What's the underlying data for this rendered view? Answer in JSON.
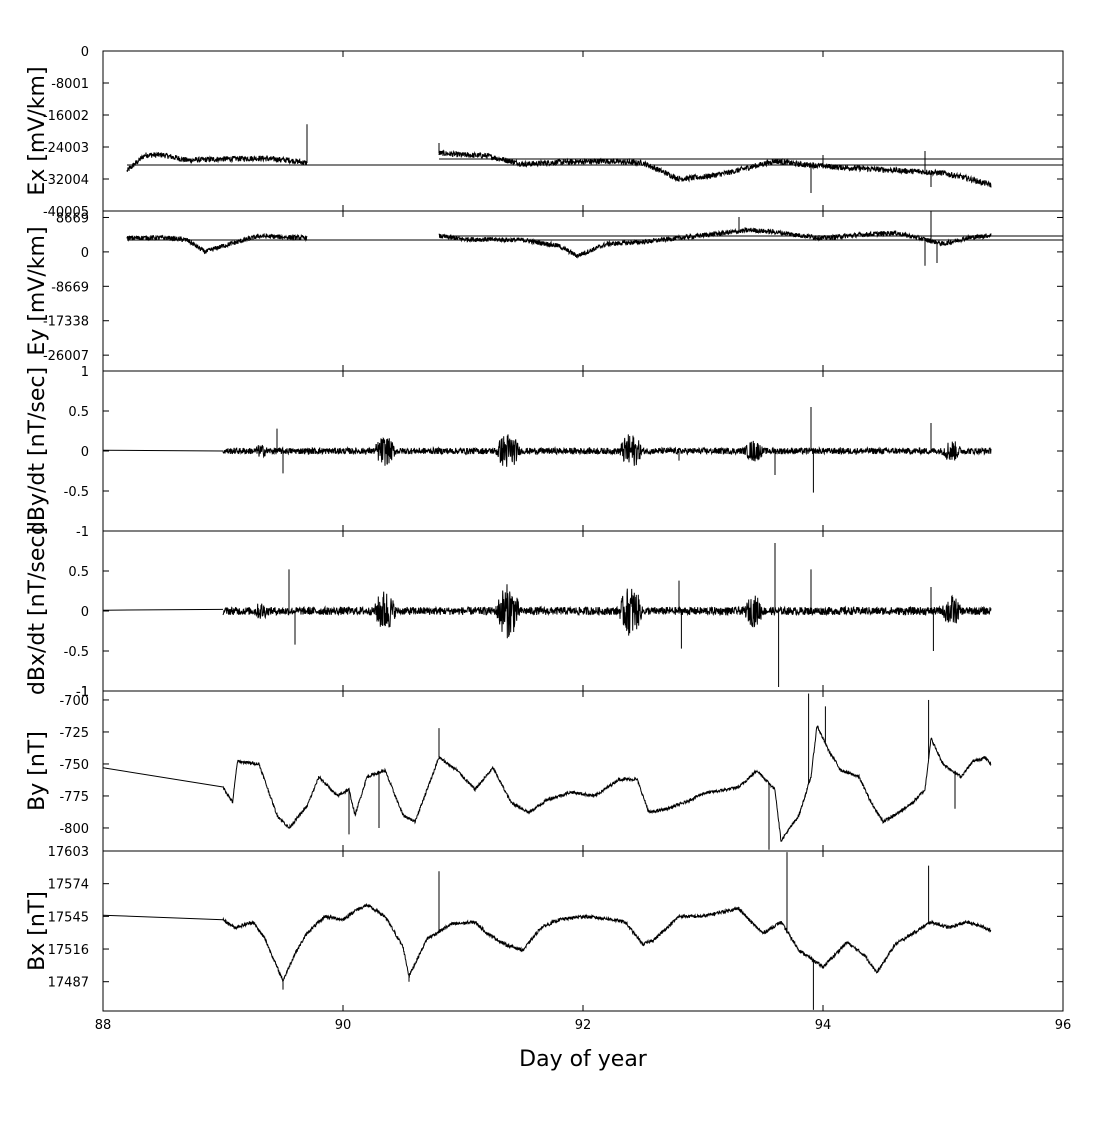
{
  "chart_data": {
    "type": "line",
    "xlabel": "Day of year",
    "xlim": [
      88,
      96
    ],
    "xticks": [
      88,
      90,
      92,
      94,
      96
    ],
    "xtick_labels": [
      "88",
      "90",
      "92",
      "94",
      "96"
    ],
    "grid": false,
    "panels": [
      {
        "id": "ex",
        "ylabel": "Ex [mV/km]",
        "ylim": [
          -40005,
          0
        ],
        "yticks": [
          0,
          -8001,
          -16002,
          -24003,
          -32004,
          -40005
        ],
        "ytick_labels": [
          "0",
          "-8001",
          "-16002",
          "-24003",
          "-32004",
          "-40005"
        ],
        "noise": 700,
        "segments": [
          [
            [
              88.2,
              -30000
            ],
            [
              88.35,
              -26000
            ],
            [
              88.5,
              -26000
            ],
            [
              88.7,
              -27300
            ],
            [
              89.0,
              -27000
            ],
            [
              89.3,
              -26800
            ],
            [
              89.55,
              -27300
            ],
            [
              89.7,
              -28000
            ]
          ],
          [
            [
              90.8,
              -25500
            ],
            [
              91.0,
              -26000
            ],
            [
              91.2,
              -26200
            ],
            [
              91.5,
              -28300
            ],
            [
              91.8,
              -27800
            ],
            [
              92.2,
              -27500
            ],
            [
              92.5,
              -28000
            ],
            [
              92.8,
              -32000
            ],
            [
              93.0,
              -31500
            ],
            [
              93.2,
              -30500
            ],
            [
              93.4,
              -29000
            ],
            [
              93.6,
              -27500
            ],
            [
              93.8,
              -28300
            ],
            [
              94.1,
              -29000
            ],
            [
              94.4,
              -29500
            ],
            [
              94.7,
              -30000
            ],
            [
              95.0,
              -30500
            ],
            [
              95.2,
              -31800
            ],
            [
              95.4,
              -33500
            ]
          ]
        ],
        "baselines": [
          {
            "x": [
              88.2,
              96
            ],
            "y": [
              -28500,
              -28500
            ]
          },
          {
            "x": [
              90.8,
              96
            ],
            "y": [
              -27000,
              -27000
            ]
          }
        ],
        "spikes": [
          [
            89.7,
            -18300
          ],
          [
            90.8,
            -23000
          ],
          [
            93.9,
            -35500
          ],
          [
            94.0,
            -26000
          ],
          [
            94.85,
            -25000
          ],
          [
            94.9,
            -34000
          ]
        ]
      },
      {
        "id": "ey",
        "ylabel": "Ey [mV/km]",
        "ylim": [
          -30000,
          10300
        ],
        "yticks": [
          8669,
          0,
          -8669,
          -17338,
          -26007
        ],
        "ytick_labels": [
          "8669",
          "0",
          "-8669",
          "-17338",
          "-26007"
        ],
        "noise": 600,
        "segments": [
          [
            [
              88.2,
              3500
            ],
            [
              88.5,
              3600
            ],
            [
              88.7,
              3000
            ],
            [
              88.85,
              0
            ],
            [
              89.0,
              1500
            ],
            [
              89.3,
              4000
            ],
            [
              89.7,
              3500
            ]
          ],
          [
            [
              90.8,
              4000
            ],
            [
              91.0,
              3200
            ],
            [
              91.5,
              3000
            ],
            [
              91.8,
              1500
            ],
            [
              91.95,
              -1000
            ],
            [
              92.2,
              2000
            ],
            [
              92.5,
              2500
            ],
            [
              92.8,
              3500
            ],
            [
              93.0,
              4200
            ],
            [
              93.4,
              5500
            ],
            [
              93.6,
              5000
            ],
            [
              93.8,
              4200
            ],
            [
              94.0,
              3500
            ],
            [
              94.3,
              4300
            ],
            [
              94.6,
              4800
            ],
            [
              94.8,
              3500
            ],
            [
              95.0,
              2000
            ],
            [
              95.2,
              3500
            ],
            [
              95.4,
              4200
            ]
          ]
        ],
        "baselines": [
          {
            "x": [
              88.2,
              96
            ],
            "y": [
              3000,
              3000
            ]
          },
          {
            "x": [
              90.8,
              96
            ],
            "y": [
              4000,
              4000
            ]
          }
        ],
        "spikes": [
          [
            93.3,
            8800
          ],
          [
            94.9,
            13000
          ],
          [
            94.85,
            -3500
          ],
          [
            94.95,
            -2800
          ]
        ]
      },
      {
        "id": "dbydt",
        "ylabel": "dBy/dt [nT/sec]",
        "ylim": [
          -1,
          1
        ],
        "yticks": [
          1,
          0.5,
          0,
          -0.5,
          -1
        ],
        "ytick_labels": [
          "1",
          "0.5",
          "0",
          "-0.5",
          "-1"
        ],
        "noise": 0.04,
        "burst": 0.2,
        "flat": [
          [
            88.0,
            0.01
          ],
          [
            89.0,
            0.0
          ]
        ],
        "segments": [
          [
            [
              89.0,
              0.0
            ],
            [
              95.4,
              0.0
            ]
          ]
        ],
        "baselines": [],
        "spikes": [
          [
            89.45,
            0.28
          ],
          [
            89.5,
            -0.28
          ],
          [
            93.6,
            -0.3
          ],
          [
            93.9,
            0.55
          ],
          [
            93.92,
            -0.52
          ],
          [
            94.9,
            0.35
          ],
          [
            92.8,
            -0.12
          ]
        ]
      },
      {
        "id": "dbxdt",
        "ylabel": "dBx/dt [nT/sec]",
        "ylim": [
          -1,
          1
        ],
        "yticks": [
          -1,
          0.5,
          0,
          -0.5,
          -1
        ],
        "ytick_labels": [
          "-1",
          "0.5",
          "0",
          "-0.5",
          "-1"
        ],
        "noise": 0.05,
        "burst": 0.3,
        "flat": [
          [
            88.0,
            0.01
          ],
          [
            89.0,
            0.02
          ]
        ],
        "segments": [
          [
            [
              89.0,
              0.0
            ],
            [
              95.4,
              0.0
            ]
          ]
        ],
        "baselines": [],
        "spikes": [
          [
            89.55,
            0.52
          ],
          [
            89.6,
            -0.42
          ],
          [
            92.8,
            0.38
          ],
          [
            92.82,
            -0.47
          ],
          [
            93.6,
            0.85
          ],
          [
            93.63,
            -0.95
          ],
          [
            93.9,
            0.52
          ],
          [
            94.9,
            0.3
          ],
          [
            94.92,
            -0.5
          ]
        ]
      },
      {
        "id": "by",
        "ylabel": "By [nT]",
        "ylim": [
          -818,
          -693
        ],
        "yticks": [
          -700,
          -725,
          -750,
          -775,
          -800
        ],
        "ytick_labels": [
          "-700",
          "-725",
          "-750",
          "-775",
          "-800"
        ],
        "noise": 1.2,
        "flat": [
          [
            88.0,
            -753
          ],
          [
            89.0,
            -768
          ]
        ],
        "segments": [
          [
            [
              89.0,
              -768
            ],
            [
              89.08,
              -780
            ],
            [
              89.12,
              -748
            ],
            [
              89.3,
              -750
            ],
            [
              89.45,
              -790
            ],
            [
              89.55,
              -800
            ],
            [
              89.7,
              -783
            ],
            [
              89.8,
              -760
            ],
            [
              89.95,
              -775
            ],
            [
              90.05,
              -770
            ],
            [
              90.1,
              -790
            ],
            [
              90.2,
              -760
            ],
            [
              90.35,
              -755
            ],
            [
              90.5,
              -790
            ],
            [
              90.6,
              -795
            ],
            [
              90.7,
              -770
            ],
            [
              90.8,
              -745
            ],
            [
              90.95,
              -755
            ],
            [
              91.1,
              -770
            ],
            [
              91.25,
              -753
            ],
            [
              91.4,
              -780
            ],
            [
              91.55,
              -788
            ],
            [
              91.7,
              -778
            ],
            [
              91.9,
              -772
            ],
            [
              92.1,
              -775
            ],
            [
              92.3,
              -762
            ],
            [
              92.45,
              -762
            ],
            [
              92.55,
              -788
            ],
            [
              92.7,
              -785
            ],
            [
              92.85,
              -780
            ],
            [
              93.0,
              -773
            ],
            [
              93.2,
              -770
            ],
            [
              93.3,
              -768
            ],
            [
              93.45,
              -755
            ],
            [
              93.6,
              -770
            ],
            [
              93.65,
              -810
            ],
            [
              93.8,
              -790
            ],
            [
              93.9,
              -760
            ],
            [
              93.95,
              -720
            ],
            [
              94.05,
              -740
            ],
            [
              94.15,
              -755
            ],
            [
              94.3,
              -760
            ],
            [
              94.4,
              -780
            ],
            [
              94.5,
              -795
            ],
            [
              94.6,
              -790
            ],
            [
              94.75,
              -780
            ],
            [
              94.85,
              -770
            ],
            [
              94.9,
              -730
            ],
            [
              95.0,
              -750
            ],
            [
              95.15,
              -760
            ],
            [
              95.25,
              -748
            ],
            [
              95.35,
              -745
            ],
            [
              95.4,
              -750
            ]
          ]
        ],
        "baselines": [],
        "spikes": [
          [
            90.8,
            -722
          ],
          [
            93.55,
            -817
          ],
          [
            93.88,
            -695
          ],
          [
            94.02,
            -705
          ],
          [
            94.88,
            -700
          ],
          [
            95.1,
            -785
          ],
          [
            90.05,
            -805
          ],
          [
            90.3,
            -800
          ]
        ]
      },
      {
        "id": "bx",
        "ylabel": "Bx [nT]",
        "ylim": [
          17461,
          17603
        ],
        "yticks": [
          17603,
          17574,
          17545,
          17516,
          17487
        ],
        "ytick_labels": [
          "17603",
          "17574",
          "17545",
          "17516",
          "17487"
        ],
        "noise": 1.5,
        "flat": [
          [
            88.0,
            17546
          ],
          [
            89.0,
            17542
          ]
        ],
        "segments": [
          [
            [
              89.0,
              17542
            ],
            [
              89.1,
              17535
            ],
            [
              89.25,
              17540
            ],
            [
              89.35,
              17525
            ],
            [
              89.45,
              17500
            ],
            [
              89.5,
              17488
            ],
            [
              89.6,
              17512
            ],
            [
              89.7,
              17530
            ],
            [
              89.85,
              17545
            ],
            [
              90.0,
              17542
            ],
            [
              90.1,
              17550
            ],
            [
              90.2,
              17555
            ],
            [
              90.35,
              17545
            ],
            [
              90.5,
              17518
            ],
            [
              90.55,
              17492
            ],
            [
              90.7,
              17525
            ],
            [
              90.9,
              17538
            ],
            [
              91.1,
              17540
            ],
            [
              91.2,
              17530
            ],
            [
              91.35,
              17520
            ],
            [
              91.5,
              17515
            ],
            [
              91.65,
              17535
            ],
            [
              91.8,
              17542
            ],
            [
              92.0,
              17545
            ],
            [
              92.2,
              17543
            ],
            [
              92.35,
              17540
            ],
            [
              92.5,
              17520
            ],
            [
              92.6,
              17525
            ],
            [
              92.8,
              17545
            ],
            [
              93.0,
              17545
            ],
            [
              93.2,
              17550
            ],
            [
              93.3,
              17552
            ],
            [
              93.4,
              17540
            ],
            [
              93.5,
              17530
            ],
            [
              93.65,
              17540
            ],
            [
              93.8,
              17515
            ],
            [
              94.0,
              17500
            ],
            [
              94.2,
              17522
            ],
            [
              94.35,
              17510
            ],
            [
              94.45,
              17495
            ],
            [
              94.6,
              17520
            ],
            [
              94.75,
              17530
            ],
            [
              94.9,
              17540
            ],
            [
              95.05,
              17535
            ],
            [
              95.2,
              17540
            ],
            [
              95.35,
              17535
            ],
            [
              95.4,
              17532
            ]
          ]
        ],
        "baselines": [],
        "spikes": [
          [
            89.5,
            17480
          ],
          [
            90.8,
            17585
          ],
          [
            93.7,
            17602
          ],
          [
            93.92,
            17462
          ],
          [
            94.88,
            17590
          ],
          [
            90.55,
            17487
          ]
        ]
      }
    ]
  }
}
